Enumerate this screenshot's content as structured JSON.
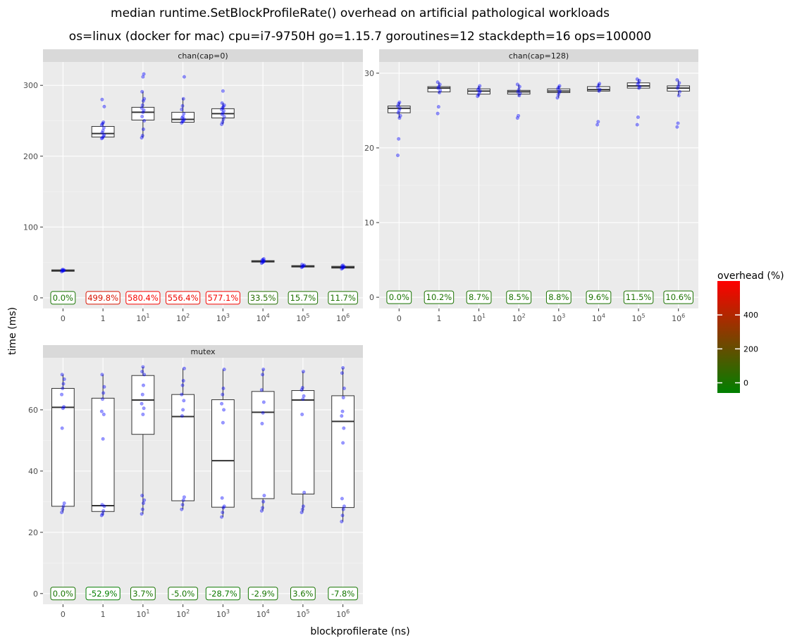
{
  "chart_data": {
    "type": "boxplot",
    "title": "median runtime.SetBlockProfileRate() overhead on artificial pathological workloads",
    "subtitle": "os=linux (docker for mac) cpu=i7-9750H go=1.15.7 goroutines=12 stackdepth=16 ops=100000",
    "xlabel": "blockprofilerate (ns)",
    "ylabel": "time (ms)",
    "categories": [
      {
        "base": "0",
        "sup": ""
      },
      {
        "base": "1",
        "sup": ""
      },
      {
        "base": "10",
        "sup": "1"
      },
      {
        "base": "10",
        "sup": "2"
      },
      {
        "base": "10",
        "sup": "3"
      },
      {
        "base": "10",
        "sup": "4"
      },
      {
        "base": "10",
        "sup": "5"
      },
      {
        "base": "10",
        "sup": "6"
      }
    ],
    "legend": {
      "title": "overhead (%)",
      "ticks": [
        0,
        200,
        400
      ],
      "min": -60,
      "max": 600,
      "low_color": "#008000",
      "high_color": "#ff0000"
    },
    "panels": [
      {
        "name": "chan(cap=0)",
        "ylim": [
          -15,
          333
        ],
        "yticks": [
          0,
          100,
          200,
          300
        ],
        "boxes": [
          {
            "q1": 37.5,
            "median": 38.5,
            "q3": 39.5,
            "wlo": 37,
            "whi": 40,
            "pts": [
              37,
              38,
              38.5,
              39,
              39.5,
              40
            ]
          },
          {
            "q1": 227,
            "median": 232,
            "q3": 242,
            "wlo": 225,
            "whi": 248,
            "pts": [
              225,
              226,
              228,
              230,
              233,
              236,
              240,
              244,
              246,
              248,
              270,
              280
            ]
          },
          {
            "q1": 251,
            "median": 262,
            "q3": 269,
            "wlo": 226,
            "whi": 291,
            "pts": [
              226,
              229,
              238,
              250,
              256,
              262,
              265,
              268,
              272,
              278,
              281,
              291,
              312,
              316
            ]
          },
          {
            "q1": 248,
            "median": 252,
            "q3": 262,
            "wlo": 247,
            "whi": 282,
            "pts": [
              247,
              249,
              250,
              252,
              254,
              256,
              260,
              266,
              271,
              281,
              312
            ]
          },
          {
            "q1": 254,
            "median": 260,
            "q3": 267,
            "wlo": 245,
            "whi": 275,
            "pts": [
              245,
              248,
              252,
              256,
              259,
              261,
              264,
              266,
              268,
              270,
              272,
              275,
              292
            ]
          },
          {
            "q1": 50.5,
            "median": 51.5,
            "q3": 52.5,
            "wlo": 49,
            "whi": 55,
            "pts": [
              49,
              50,
              51,
              52,
              53,
              54,
              55
            ]
          },
          {
            "q1": 43.5,
            "median": 44.5,
            "q3": 45.5,
            "wlo": 43,
            "whi": 47,
            "pts": [
              43,
              44,
              45,
              46,
              47
            ]
          },
          {
            "q1": 42,
            "median": 43,
            "q3": 44.5,
            "wlo": 41,
            "whi": 46,
            "pts": [
              41,
              42,
              43,
              44,
              45,
              46
            ]
          }
        ],
        "overhead": [
          "0.0%",
          "499.8%",
          "580.4%",
          "556.4%",
          "577.1%",
          "33.5%",
          "15.7%",
          "11.7%"
        ],
        "overhead_values": [
          0,
          499.8,
          580.4,
          556.4,
          577.1,
          33.5,
          15.7,
          11.7
        ]
      },
      {
        "name": "chan(cap=128)",
        "ylim": [
          -1.5,
          31.5
        ],
        "yticks": [
          0,
          10,
          20,
          30
        ],
        "boxes": [
          {
            "q1": 24.7,
            "median": 25.3,
            "q3": 25.6,
            "wlo": 24,
            "whi": 26.1,
            "pts": [
              19,
              21.2,
              24,
              24.3,
              24.7,
              25,
              25.3,
              25.6,
              25.9,
              26.1
            ]
          },
          {
            "q1": 27.5,
            "median": 28.0,
            "q3": 28.2,
            "wlo": 27.3,
            "whi": 28.8,
            "pts": [
              24.6,
              25.5,
              27.4,
              27.7,
              28,
              28.2,
              28.5,
              28.8
            ]
          },
          {
            "q1": 27.2,
            "median": 27.6,
            "q3": 27.9,
            "wlo": 26.9,
            "whi": 28.3,
            "pts": [
              26.9,
              27.1,
              27.4,
              27.6,
              27.8,
              28,
              28.3
            ]
          },
          {
            "q1": 27.2,
            "median": 27.5,
            "q3": 27.7,
            "wlo": 26.9,
            "whi": 28.5,
            "pts": [
              24,
              24.3,
              27,
              27.3,
              27.5,
              27.8,
              28.2,
              28.5
            ]
          },
          {
            "q1": 27.4,
            "median": 27.6,
            "q3": 27.9,
            "wlo": 26.7,
            "whi": 28.3,
            "pts": [
              26.7,
              27.1,
              27.4,
              27.6,
              27.9,
              28.1,
              28.3
            ]
          },
          {
            "q1": 27.6,
            "median": 27.8,
            "q3": 28.2,
            "wlo": 27.5,
            "whi": 28.6,
            "pts": [
              23.1,
              23.5,
              27.6,
              27.8,
              28.1,
              28.4,
              28.6
            ]
          },
          {
            "q1": 28.0,
            "median": 28.3,
            "q3": 28.7,
            "wlo": 27.9,
            "whi": 29.2,
            "pts": [
              23.1,
              24.1,
              28,
              28.2,
              28.5,
              28.7,
              29,
              29.2
            ]
          },
          {
            "q1": 27.6,
            "median": 28.0,
            "q3": 28.3,
            "wlo": 27.0,
            "whi": 29.1,
            "pts": [
              22.8,
              23.3,
              27,
              27.5,
              28,
              28.3,
              28.7,
              29.1
            ]
          }
        ],
        "overhead": [
          "0.0%",
          "10.2%",
          "8.7%",
          "8.5%",
          "8.8%",
          "9.6%",
          "11.5%",
          "10.6%"
        ],
        "overhead_values": [
          0,
          10.2,
          8.7,
          8.5,
          8.8,
          9.6,
          11.5,
          10.6
        ]
      },
      {
        "name": "mutex",
        "ylim": [
          -3.5,
          77
        ],
        "yticks": [
          0,
          20,
          40,
          60
        ],
        "boxes": [
          {
            "q1": 28.5,
            "median": 60.8,
            "q3": 67,
            "wlo": 26.5,
            "whi": 71.5,
            "pts": [
              26.5,
              27.5,
              28.5,
              29.5,
              54,
              60.5,
              61,
              65,
              67,
              68.5,
              70,
              71.5
            ]
          },
          {
            "q1": 26.8,
            "median": 28.7,
            "q3": 63.8,
            "wlo": 25.5,
            "whi": 71.5,
            "pts": [
              25.5,
              26,
              27,
              28.5,
              29,
              50.5,
              58.5,
              59.5,
              63.5,
              65.5,
              67.5,
              71.5
            ]
          },
          {
            "q1": 52,
            "median": 63.2,
            "q3": 71.2,
            "wlo": 26,
            "whi": 74,
            "pts": [
              26,
              27.5,
              29.5,
              30.5,
              32,
              58.5,
              60.5,
              62,
              65,
              68,
              71.5,
              72.5,
              74
            ]
          },
          {
            "q1": 30.3,
            "median": 57.8,
            "q3": 65,
            "wlo": 27.5,
            "whi": 73.5,
            "pts": [
              27.5,
              29,
              30.5,
              31.5,
              58,
              60,
              63,
              65,
              68,
              69.5,
              73.5
            ]
          },
          {
            "q1": 28.2,
            "median": 43.4,
            "q3": 63.3,
            "wlo": 25,
            "whi": 73.2,
            "pts": [
              25,
              26.5,
              28,
              28.5,
              31.2,
              55.8,
              60,
              62,
              65,
              67,
              73.2
            ]
          },
          {
            "q1": 31,
            "median": 59.2,
            "q3": 66,
            "wlo": 27,
            "whi": 73.2,
            "pts": [
              27,
              28,
              30,
              32,
              55.5,
              59,
              62.5,
              66.5,
              71.5,
              73.2
            ]
          },
          {
            "q1": 32.5,
            "median": 63.2,
            "q3": 66.3,
            "wlo": 26.5,
            "whi": 72.5,
            "pts": [
              26.5,
              27.5,
              28.5,
              33,
              58.5,
              63.5,
              64.5,
              66.5,
              67.2,
              72.5
            ]
          },
          {
            "q1": 28.1,
            "median": 56.2,
            "q3": 64.6,
            "wlo": 23.5,
            "whi": 73.7,
            "pts": [
              23.5,
              25.5,
              27.5,
              28.5,
              31,
              49.2,
              54,
              58,
              59.5,
              64,
              67,
              72,
              73.7
            ]
          }
        ],
        "overhead": [
          "0.0%",
          "-52.9%",
          "3.7%",
          "-5.0%",
          "-28.7%",
          "-2.9%",
          "3.6%",
          "-7.8%"
        ],
        "overhead_values": [
          0,
          -52.9,
          3.7,
          -5.0,
          -28.7,
          -2.9,
          3.6,
          -7.8
        ]
      }
    ]
  }
}
